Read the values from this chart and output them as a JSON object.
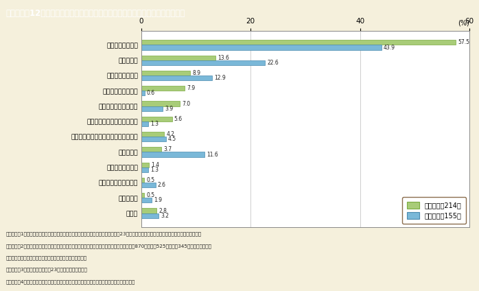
{
  "title": "第１－特－12図　津波警報を見聞きした人の情報の入手先（男女別，複数回答）",
  "categories": [
    "防災行政無線から",
    "ラジオから",
    "消防の車や人から",
    "家族や近所の人から",
    "役場の広報車や人から",
    "携帯電話のワンセグ放送から",
    "車のテレビ・ラジオ（カーナビ）から",
    "テレビから",
    "警察の車の人から",
    "携帯電話のメールから",
    "施設の放送",
    "その他"
  ],
  "female_values": [
    57.5,
    13.6,
    8.9,
    7.9,
    7.0,
    5.6,
    4.2,
    3.7,
    1.4,
    0.5,
    0.5,
    2.8
  ],
  "male_values": [
    43.9,
    22.6,
    12.9,
    0.6,
    3.9,
    1.3,
    4.5,
    11.6,
    1.3,
    2.6,
    1.9,
    3.2
  ],
  "female_color": "#A8CC78",
  "male_color": "#7AB8D8",
  "female_edge_color": "#7AAA40",
  "male_edge_color": "#4A8AAE",
  "background_color": "#F5F0DC",
  "plot_bg_color": "#FFFFFF",
  "title_bg_color": "#9B7D5A",
  "title_text_color": "#FFFFFF",
  "xlim": [
    0,
    60
  ],
  "xticks": [
    0,
    20,
    40,
    60
  ],
  "xlabel_unit": "(%)",
  "legend_female": "女性（ｎ＝214）",
  "legend_male": "男性（ｎ＝155）",
  "footnote_lines": [
    "（備考）　1．内閣府・消防庁・気象庁共同調査「津波避難等に関する調査」（平成23年）を基に，内閣府男女共同参画局による男女別集計。",
    "　　　　　2．調査対象は，岩手県，宮城県及び福島県の沿岸地域で県内避難をしている被災者870人（女性525人，男性345人）。調査は，仮",
    "　　　　　　　設住宅・避難所を訪問し，面接方式で実施。",
    "　　　　　3．調査時期は，平成23年７月上旬から下旬。",
    "　　　　　4．本問の回答者は，避難するまでの間に大津波の津波警報を見聞きした人である。"
  ]
}
